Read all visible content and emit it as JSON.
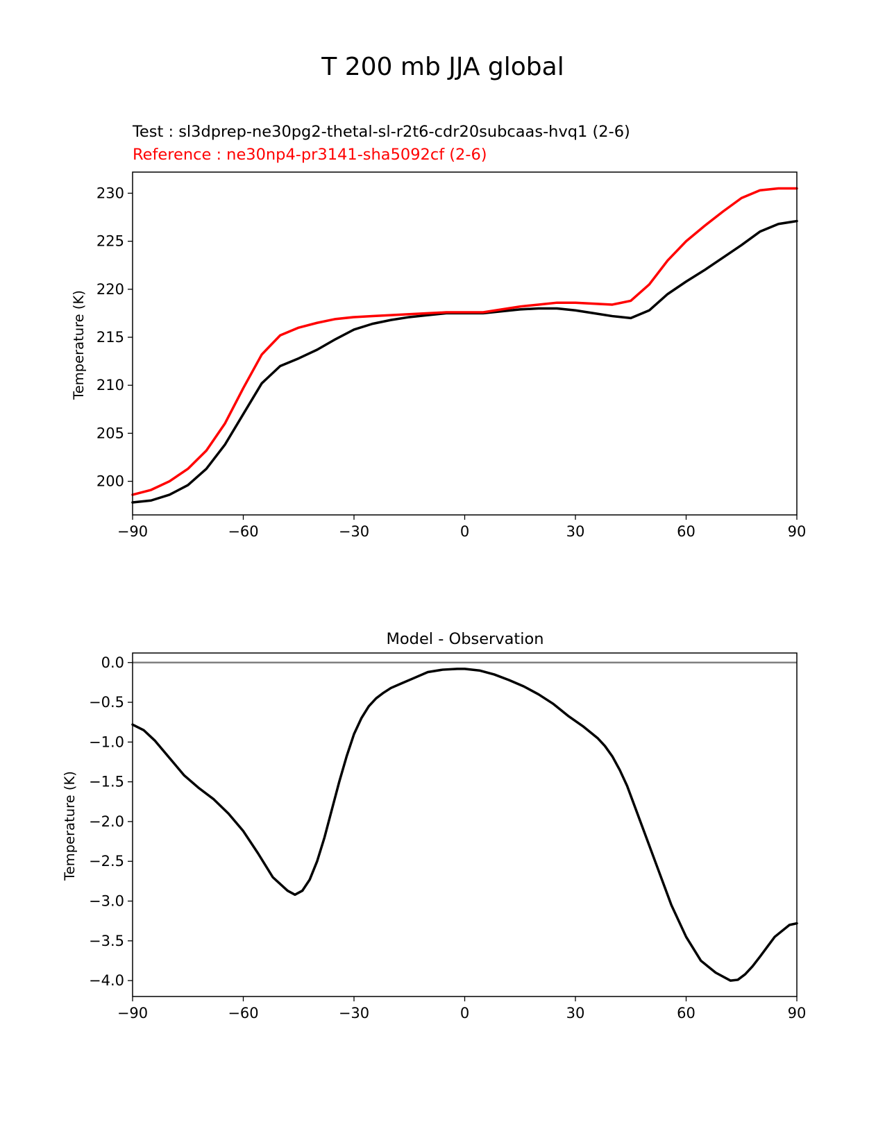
{
  "figure": {
    "title": "T 200 mb JJA global"
  },
  "chart_data": [
    {
      "type": "line",
      "test_label": "Test : sl3dprep-ne30pg2-thetal-sl-r2t6-cdr20subcaas-hvq1 (2-6)",
      "reference_label": "Reference : ne30np4-pr3141-sha5092cf (2-6)",
      "ylabel": "Temperature (K)",
      "xlim": [
        -90,
        90
      ],
      "ylim": [
        196.5,
        232.2
      ],
      "xticks": [
        -90,
        -60,
        -30,
        0,
        30,
        60,
        90
      ],
      "xtick_labels": [
        "−90",
        "−60",
        "−30",
        "0",
        "30",
        "60",
        "90"
      ],
      "yticks": [
        200,
        205,
        210,
        215,
        220,
        225,
        230
      ],
      "ytick_labels": [
        "200",
        "205",
        "210",
        "215",
        "220",
        "225",
        "230"
      ],
      "grid": false,
      "series": [
        {
          "name": "Test : sl3dprep-ne30pg2-thetal-sl-r2t6-cdr20subcaas-hvq1 (2-6)",
          "color": "#000000",
          "x": [
            -90,
            -85,
            -80,
            -75,
            -70,
            -65,
            -60,
            -55,
            -50,
            -45,
            -40,
            -35,
            -30,
            -25,
            -20,
            -15,
            -10,
            -5,
            0,
            5,
            10,
            15,
            20,
            25,
            30,
            35,
            40,
            45,
            50,
            55,
            60,
            65,
            70,
            75,
            80,
            85,
            90
          ],
          "y": [
            197.8,
            198.0,
            198.6,
            199.6,
            201.3,
            203.8,
            207.0,
            210.2,
            212.0,
            212.8,
            213.7,
            214.8,
            215.8,
            216.4,
            216.8,
            217.1,
            217.3,
            217.5,
            217.5,
            217.5,
            217.7,
            217.9,
            218.0,
            218.0,
            217.8,
            217.5,
            217.2,
            217.0,
            217.8,
            219.5,
            220.8,
            222.0,
            223.3,
            224.6,
            226.0,
            226.8,
            227.1
          ]
        },
        {
          "name": "Reference : ne30np4-pr3141-sha5092cf (2-6)",
          "color": "#ff0000",
          "x": [
            -90,
            -85,
            -80,
            -75,
            -70,
            -65,
            -60,
            -55,
            -50,
            -45,
            -40,
            -35,
            -30,
            -25,
            -20,
            -15,
            -10,
            -5,
            0,
            5,
            10,
            15,
            20,
            25,
            30,
            35,
            40,
            45,
            50,
            55,
            60,
            65,
            70,
            75,
            80,
            85,
            90
          ],
          "y": [
            198.6,
            199.1,
            200.0,
            201.3,
            203.2,
            206.0,
            209.7,
            213.2,
            215.2,
            216.0,
            216.5,
            216.9,
            217.1,
            217.2,
            217.3,
            217.4,
            217.5,
            217.6,
            217.6,
            217.6,
            217.9,
            218.2,
            218.4,
            218.6,
            218.6,
            218.5,
            218.4,
            218.8,
            220.5,
            223.0,
            225.0,
            226.6,
            228.1,
            229.5,
            230.3,
            230.5,
            230.5
          ]
        }
      ]
    },
    {
      "type": "line",
      "title": "Model - Observation",
      "ylabel": "Temperature (K)",
      "xlim": [
        -90,
        90
      ],
      "ylim": [
        -4.2,
        0.12
      ],
      "xticks": [
        -90,
        -60,
        -30,
        0,
        30,
        60,
        90
      ],
      "xtick_labels": [
        "−90",
        "−60",
        "−30",
        "0",
        "30",
        "60",
        "90"
      ],
      "yticks": [
        0.0,
        -0.5,
        -1.0,
        -1.5,
        -2.0,
        -2.5,
        -3.0,
        -3.5,
        -4.0
      ],
      "ytick_labels": [
        "0.0",
        "−0.5",
        "−1.0",
        "−1.5",
        "−2.0",
        "−2.5",
        "−3.0",
        "−3.5",
        "−4.0"
      ],
      "grid": false,
      "zero_line_color": "#808080",
      "series": [
        {
          "color": "#000000",
          "x": [
            -90,
            -87,
            -84,
            -80,
            -76,
            -72,
            -68,
            -64,
            -60,
            -56,
            -52,
            -48,
            -46,
            -44,
            -42,
            -40,
            -38,
            -36,
            -34,
            -32,
            -30,
            -28,
            -26,
            -24,
            -22,
            -20,
            -17,
            -14,
            -10,
            -6,
            -2,
            0,
            4,
            8,
            12,
            16,
            20,
            24,
            28,
            32,
            36,
            38,
            40,
            42,
            44,
            46,
            48,
            52,
            56,
            60,
            64,
            68,
            72,
            74,
            76,
            78,
            80,
            84,
            88,
            90
          ],
          "y": [
            -0.78,
            -0.85,
            -0.98,
            -1.2,
            -1.42,
            -1.58,
            -1.72,
            -1.9,
            -2.12,
            -2.4,
            -2.7,
            -2.87,
            -2.92,
            -2.87,
            -2.73,
            -2.5,
            -2.2,
            -1.85,
            -1.5,
            -1.18,
            -0.9,
            -0.7,
            -0.55,
            -0.45,
            -0.38,
            -0.32,
            -0.26,
            -0.2,
            -0.12,
            -0.09,
            -0.08,
            -0.08,
            -0.1,
            -0.15,
            -0.22,
            -0.3,
            -0.4,
            -0.52,
            -0.67,
            -0.8,
            -0.95,
            -1.05,
            -1.18,
            -1.35,
            -1.55,
            -1.8,
            -2.05,
            -2.55,
            -3.05,
            -3.45,
            -3.75,
            -3.9,
            -4.0,
            -3.99,
            -3.92,
            -3.82,
            -3.7,
            -3.45,
            -3.3,
            -3.28
          ]
        }
      ]
    }
  ]
}
